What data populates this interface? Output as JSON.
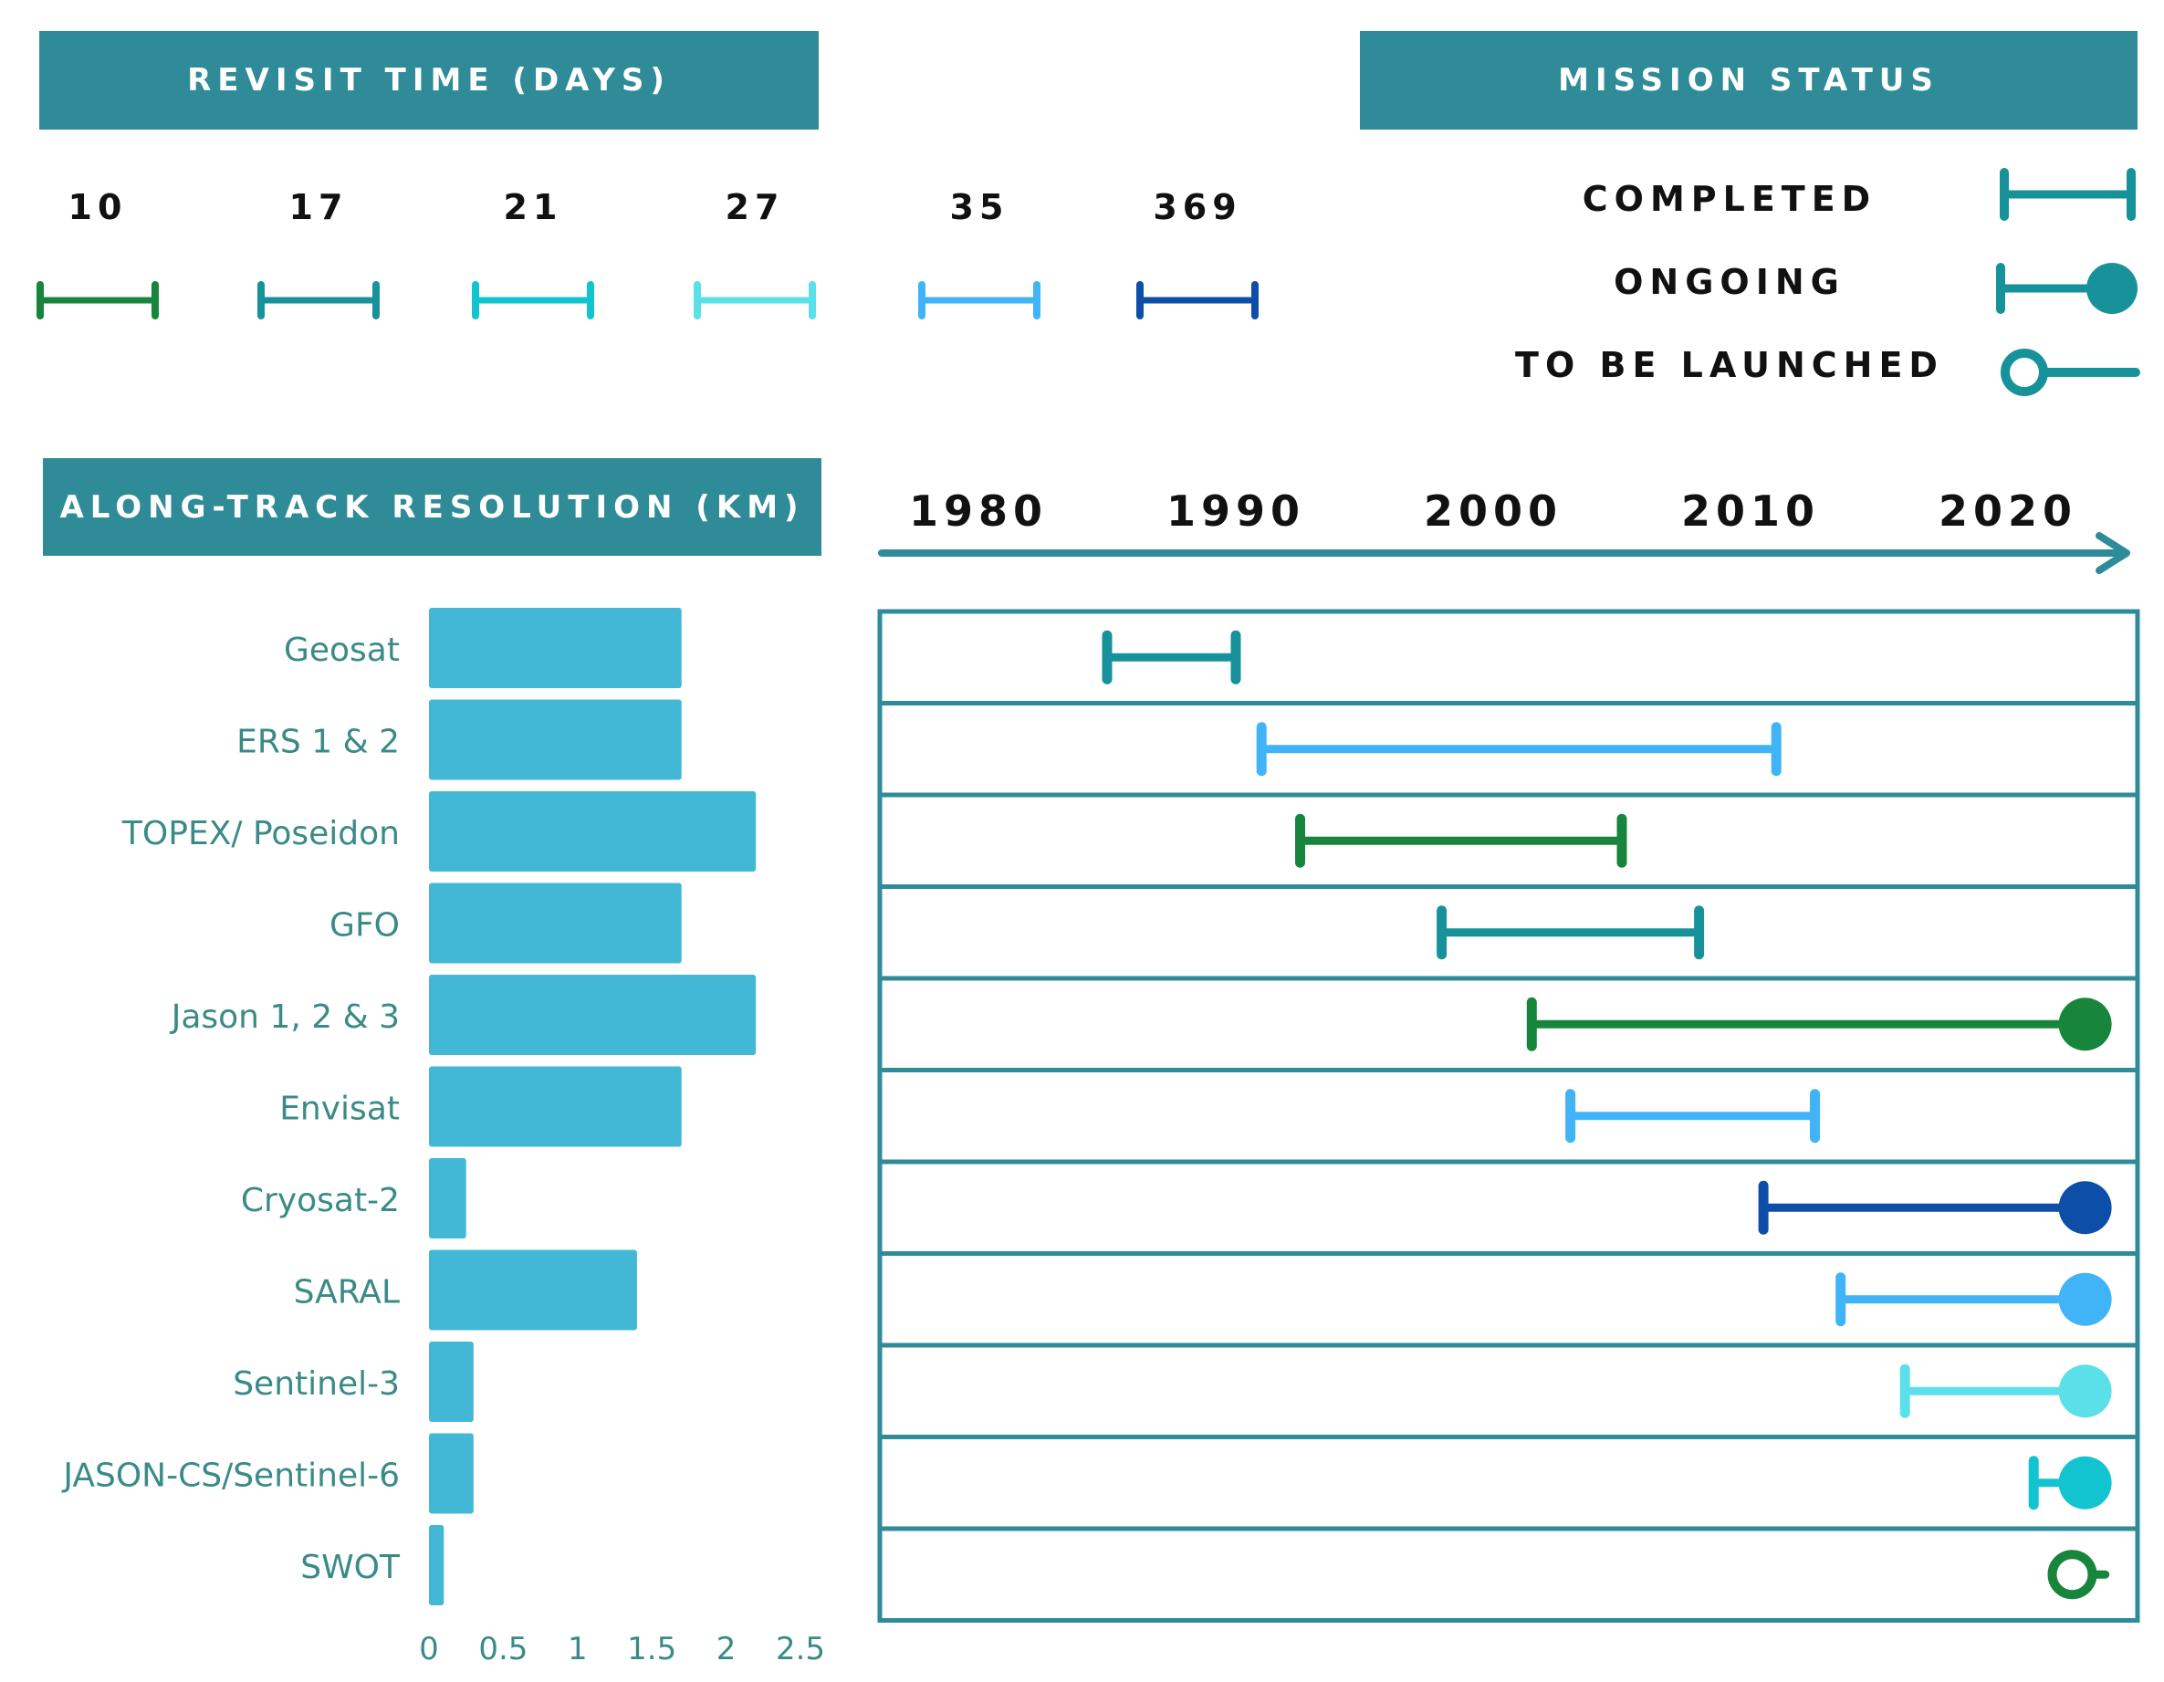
{
  "revisit_title": "REVISIT TIME (DAYS)",
  "status_title": "MISSION STATUS",
  "resolution_title": "ALONG-TRACK RESOLUTION (KM)",
  "revisit_legend": [
    {
      "label": "10",
      "color": "#17853c"
    },
    {
      "label": "17",
      "color": "#17929a"
    },
    {
      "label": "21",
      "color": "#12c4cf"
    },
    {
      "label": "27",
      "color": "#5be0ea"
    },
    {
      "label": "35",
      "color": "#40b4f7"
    },
    {
      "label": "369",
      "color": "#0c4ea8"
    }
  ],
  "status_legend": [
    {
      "label": "COMPLETED",
      "style": "completed"
    },
    {
      "label": "ONGOING",
      "style": "ongoing"
    },
    {
      "label": "TO BE LAUNCHED",
      "style": "to-be-launched"
    }
  ],
  "colors": {
    "banner": "#2e8b97",
    "bar": "#42b8d6",
    "frame": "#2e8b97",
    "label_text": "#3a8b86",
    "legend_marker": "#17929a"
  },
  "chart_data": [
    {
      "type": "bar",
      "orientation": "horizontal",
      "title": "ALONG-TRACK RESOLUTION (KM)",
      "categories": [
        "Geosat",
        "ERS 1 & 2",
        "TOPEX/ Poseidon",
        "GFO",
        "Jason 1, 2 & 3",
        "Envisat",
        "Cryosat-2",
        "SARAL",
        "Sentinel-3",
        "JASON-CS/Sentinel-6",
        "SWOT"
      ],
      "values": [
        1.7,
        1.7,
        2.2,
        1.7,
        2.2,
        1.7,
        0.25,
        1.4,
        0.3,
        0.3,
        0.1
      ],
      "xlim": [
        0,
        2.5
      ],
      "xticks": [
        "0",
        "0.5",
        "1",
        "1.5",
        "2",
        "2.5"
      ],
      "xtick_values": [
        0,
        0.5,
        1,
        1.5,
        2,
        2.5
      ]
    },
    {
      "type": "timeline",
      "title": "MISSION STATUS",
      "x_ticks": [
        "1980",
        "1990",
        "2000",
        "2010",
        "2020"
      ],
      "x_tick_values": [
        1980,
        1990,
        2000,
        2010,
        2020
      ],
      "xlim": [
        1975.5,
        2026
      ],
      "missions": [
        {
          "name": "Geosat",
          "start": 1985,
          "end": 1990,
          "revisit_days": "17",
          "status": "completed"
        },
        {
          "name": "ERS 1 & 2",
          "start": 1991,
          "end": 2011,
          "revisit_days": "35",
          "status": "completed"
        },
        {
          "name": "TOPEX/ Poseidon",
          "start": 1992.5,
          "end": 2005,
          "revisit_days": "10",
          "status": "completed"
        },
        {
          "name": "GFO",
          "start": 1998,
          "end": 2008,
          "revisit_days": "17",
          "status": "completed"
        },
        {
          "name": "Jason 1, 2 & 3",
          "start": 2001.5,
          "end": 2023,
          "revisit_days": "10",
          "status": "ongoing"
        },
        {
          "name": "Envisat",
          "start": 2003,
          "end": 2012.5,
          "revisit_days": "35",
          "status": "completed"
        },
        {
          "name": "Cryosat-2",
          "start": 2010.5,
          "end": 2023,
          "revisit_days": "369",
          "status": "ongoing"
        },
        {
          "name": "SARAL",
          "start": 2013.5,
          "end": 2023,
          "revisit_days": "35",
          "status": "ongoing"
        },
        {
          "name": "Sentinel-3",
          "start": 2016,
          "end": 2023,
          "revisit_days": "27",
          "status": "ongoing"
        },
        {
          "name": "JASON-CS/Sentinel-6",
          "start": 2021,
          "end": 2023,
          "revisit_days": "21",
          "status": "ongoing"
        },
        {
          "name": "SWOT",
          "start": 2022.5,
          "end": 2023.5,
          "revisit_days": "10",
          "status": "to-be-launched"
        }
      ]
    }
  ]
}
